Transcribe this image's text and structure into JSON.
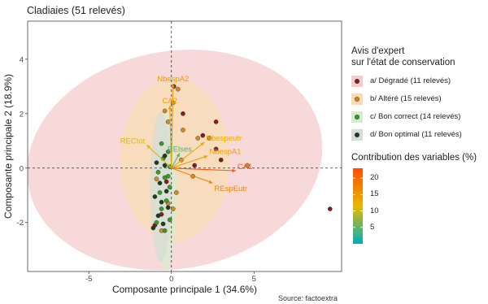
{
  "title": "Cladiaies (51 relevés)",
  "source": "Source: factoextra",
  "chart_data": {
    "type": "scatter",
    "subtype": "pca-biplot",
    "xlabel": "Composante principale 1 (34.6%)",
    "ylabel": "Composante principale 2 (18.9%)",
    "xlim": [
      -8.7,
      10.3
    ],
    "ylim": [
      -3.8,
      5.4
    ],
    "xticks": [
      -5,
      0,
      5
    ],
    "yticks": [
      -2,
      0,
      2,
      4
    ],
    "grid": false,
    "reference_lines": {
      "x": 0,
      "y": 0,
      "style": "dashed"
    },
    "legend_groups": {
      "title": "Avis d'expert sur l'état de conservation",
      "title_lines": [
        "Avis d'expert",
        "sur l'état de conservation"
      ],
      "items": [
        {
          "label": "a/ Dégradé (11 relevés)",
          "color": "#8b1a1a",
          "fill": "#f4cccc"
        },
        {
          "label": "b/ Altéré (15 relevés)",
          "color": "#d4882a",
          "fill": "#f8dcb4"
        },
        {
          "label": "c/ Bon correct (14 relevés)",
          "color": "#3c9a2a",
          "fill": "#d6ecd0"
        },
        {
          "label": "d/ Bon optimal (11  relevés)",
          "color": "#1d3d1d",
          "fill": "#d6ddd6"
        }
      ]
    },
    "legend_contrib": {
      "title": "Contribution des variables (%)",
      "min": 0,
      "max": 23,
      "ticks": [
        5,
        10,
        15,
        20
      ],
      "gradient": [
        "#00afbb",
        "#e7b800",
        "#fc4e07"
      ]
    },
    "ellipses": [
      {
        "group": 0,
        "cx": 0.2,
        "cy": 0.3,
        "rx": 9.0,
        "ry": 4.0,
        "angle": -10
      },
      {
        "group": 1,
        "cx": 0.2,
        "cy": 0.3,
        "rx": 3.3,
        "ry": 3.0,
        "angle": 0
      },
      {
        "group": 2,
        "cx": -0.35,
        "cy": -0.85,
        "rx": 0.65,
        "ry": 2.9,
        "angle": 0
      },
      {
        "group": 3,
        "cx": -0.65,
        "cy": -0.7,
        "rx": 0.65,
        "ry": 2.75,
        "angle": 0
      }
    ],
    "variables": [
      {
        "name": "NbespA2",
        "x": 0.1,
        "y": 3.1,
        "contrib": 15
      },
      {
        "name": "CA2",
        "x": -0.1,
        "y": 2.3,
        "contrib": 14
      },
      {
        "name": "Nbespeutr",
        "x": 2.0,
        "y": 0.95,
        "contrib": 13
      },
      {
        "name": "NbespA1",
        "x": 2.2,
        "y": 0.45,
        "contrib": 14
      },
      {
        "name": "RECtot",
        "x": -1.5,
        "y": 0.85,
        "contrib": 11
      },
      {
        "name": "REspEutr",
        "x": 2.5,
        "y": -0.55,
        "contrib": 17
      },
      {
        "name": "CA1",
        "x": 3.9,
        "y": -0.1,
        "contrib": 22
      },
      {
        "name": "RElses",
        "x": 0.5,
        "y": 0.55,
        "contrib": 4
      }
    ],
    "points": [
      {
        "group": 0,
        "x": 0.15,
        "y": 3.0
      },
      {
        "group": 0,
        "x": 0.7,
        "y": 2.0
      },
      {
        "group": 0,
        "x": 1.9,
        "y": 1.2
      },
      {
        "group": 0,
        "x": 2.7,
        "y": 1.7
      },
      {
        "group": 0,
        "x": 2.7,
        "y": 0.7
      },
      {
        "group": 0,
        "x": 3.0,
        "y": 0.3
      },
      {
        "group": 0,
        "x": 1.4,
        "y": 0.1
      },
      {
        "group": 0,
        "x": -0.3,
        "y": -0.5
      },
      {
        "group": 0,
        "x": -0.6,
        "y": -1.7
      },
      {
        "group": 0,
        "x": -1.0,
        "y": -2.1
      },
      {
        "group": 0,
        "x": 9.6,
        "y": -1.5
      },
      {
        "group": 1,
        "x": 0.1,
        "y": 2.4
      },
      {
        "group": 1,
        "x": -0.4,
        "y": 2.1
      },
      {
        "group": 1,
        "x": -0.2,
        "y": 1.7
      },
      {
        "group": 1,
        "x": 0.4,
        "y": 2.9
      },
      {
        "group": 1,
        "x": 0.7,
        "y": 1.4
      },
      {
        "group": 1,
        "x": 1.6,
        "y": 1.1
      },
      {
        "group": 1,
        "x": 2.3,
        "y": 1.1
      },
      {
        "group": 1,
        "x": 0.6,
        "y": 0.3
      },
      {
        "group": 1,
        "x": 4.6,
        "y": 0.1
      },
      {
        "group": 1,
        "x": 1.3,
        "y": -0.3
      },
      {
        "group": 1,
        "x": 0.3,
        "y": -0.9
      },
      {
        "group": 1,
        "x": -0.2,
        "y": -1.3
      },
      {
        "group": 1,
        "x": 0.1,
        "y": -1.5
      },
      {
        "group": 1,
        "x": -0.6,
        "y": -2.3
      },
      {
        "group": 1,
        "x": -0.9,
        "y": -0.4
      },
      {
        "group": 2,
        "x": -0.6,
        "y": 0.9
      },
      {
        "group": 2,
        "x": -0.2,
        "y": 0.6
      },
      {
        "group": 2,
        "x": -0.5,
        "y": 0.35
      },
      {
        "group": 2,
        "x": -0.1,
        "y": 0.05
      },
      {
        "group": 2,
        "x": -0.8,
        "y": -0.15
      },
      {
        "group": 2,
        "x": -0.4,
        "y": -0.35
      },
      {
        "group": 2,
        "x": -0.1,
        "y": -0.7
      },
      {
        "group": 2,
        "x": -0.7,
        "y": -0.9
      },
      {
        "group": 2,
        "x": -0.3,
        "y": -1.2
      },
      {
        "group": 2,
        "x": -0.6,
        "y": -1.5
      },
      {
        "group": 2,
        "x": -0.1,
        "y": -1.9
      },
      {
        "group": 2,
        "x": -0.4,
        "y": -2.3
      },
      {
        "group": 2,
        "x": -0.9,
        "y": -2.0
      },
      {
        "group": 2,
        "x": -0.2,
        "y": -0.3
      },
      {
        "group": 3,
        "x": -0.9,
        "y": 0.2
      },
      {
        "group": 3,
        "x": -0.4,
        "y": 0.45
      },
      {
        "group": 3,
        "x": -0.7,
        "y": -0.55
      },
      {
        "group": 3,
        "x": -0.3,
        "y": -0.85
      },
      {
        "group": 3,
        "x": -1.0,
        "y": -1.05
      },
      {
        "group": 3,
        "x": -0.6,
        "y": -1.25
      },
      {
        "group": 3,
        "x": -0.2,
        "y": -1.45
      },
      {
        "group": 3,
        "x": -0.8,
        "y": -1.75
      },
      {
        "group": 3,
        "x": -0.5,
        "y": -2.05
      },
      {
        "group": 3,
        "x": -1.1,
        "y": -2.2
      },
      {
        "group": 3,
        "x": -0.4,
        "y": 0.1
      }
    ]
  }
}
